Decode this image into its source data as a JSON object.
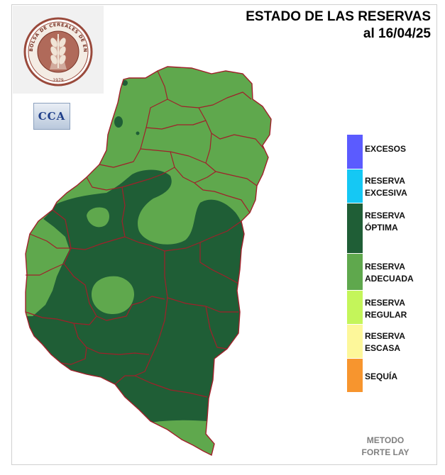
{
  "title": {
    "line1": "ESTADO DE LAS RESERVAS",
    "line2": "al 16/04/25"
  },
  "logo": {
    "ring_text": "BOLSA DE CEREALES DE ENTRE RÍOS",
    "year": "1979"
  },
  "cca_badge": "CCA",
  "legend": [
    {
      "label": "EXCESOS",
      "color": "#5b5bff"
    },
    {
      "label": "RESERVA\nEXCESIVA",
      "color": "#15c8f4"
    },
    {
      "label": "RESERVA\nÓPTIMA",
      "color": "#1f5e36"
    },
    {
      "label": "RESERVA\nADECUADA",
      "color": "#5fa84d"
    },
    {
      "label": "RESERVA\nREGULAR",
      "color": "#c4f55a"
    },
    {
      "label": "RESERVA\nESCASA",
      "color": "#fdf79a"
    },
    {
      "label": "SEQUÍA",
      "color": "#f7952e"
    }
  ],
  "method": {
    "line1": "METODO",
    "line2": "FORTE LAY"
  },
  "map_colors": {
    "adecuada": "#5fa84d",
    "optima": "#1f5e36",
    "borders": "#a0202a"
  }
}
